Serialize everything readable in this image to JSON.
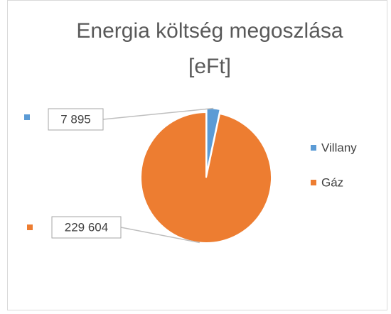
{
  "chart_data": {
    "type": "pie",
    "title": [
      "Energia költség megoszlása",
      "[eFt]"
    ],
    "categories": [
      "Villany",
      "Gáz"
    ],
    "values": [
      7895,
      229604
    ],
    "value_labels": [
      "7 895",
      "229 604"
    ],
    "colors": [
      "#5b9bd5",
      "#ed7d31"
    ],
    "legend": "right"
  }
}
